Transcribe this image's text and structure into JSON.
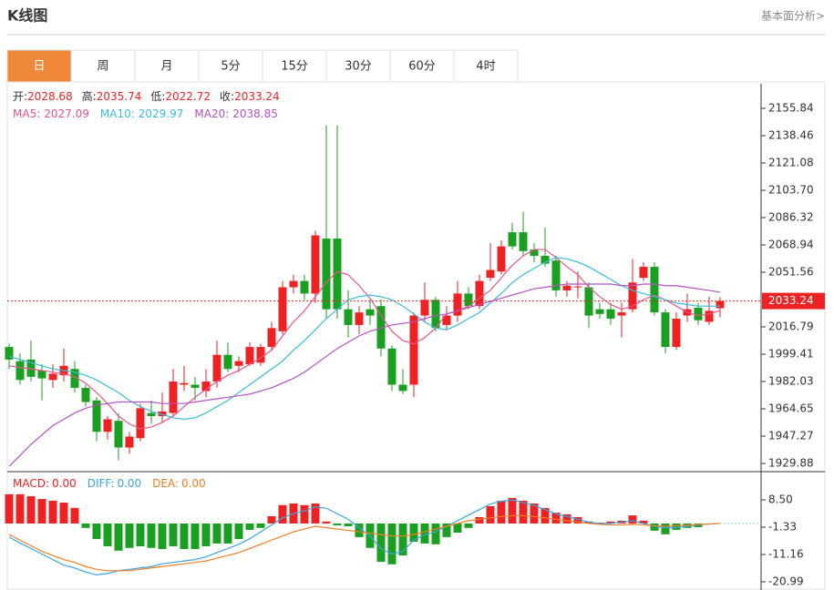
{
  "header": {
    "title": "K线图",
    "link": "基本面分析>"
  },
  "tabs": {
    "items": [
      "日",
      "周",
      "月",
      "5分",
      "15分",
      "30分",
      "60分",
      "4时"
    ],
    "active": 0,
    "active_color": "#f0883a"
  },
  "chart_data": [
    {
      "type": "candlestick",
      "quote_labels": [
        "开:",
        "高:",
        "低:",
        "收:"
      ],
      "up_color": "#ee2222",
      "down_color": "#1aa020",
      "open": [
        2004,
        1995,
        1996,
        1989,
        1983,
        1986,
        1990,
        1978,
        1970,
        1950,
        1957,
        1940,
        1946,
        1962,
        1960,
        1962,
        1980,
        1980,
        1976,
        1982,
        1999,
        1992,
        1993,
        1994,
        2004,
        2014,
        2042,
        2046,
        2038,
        2073,
        2073,
        2028,
        2018,
        2028,
        2030,
        2003,
        1980,
        1980,
        2024,
        2034,
        2018,
        2024,
        2038,
        2030,
        2048,
        2052,
        2077,
        2077,
        2066,
        2062,
        2059,
        2040,
        2042,
        2042,
        2028,
        2028,
        2024,
        2028,
        2048,
        2055,
        2026,
        2004,
        2024,
        2029,
        2020,
        2028.68
      ],
      "high": [
        2006,
        2000,
        2008,
        1993,
        1993,
        2003,
        1995,
        1980,
        1972,
        1960,
        1962,
        1950,
        1968,
        1970,
        1975,
        1990,
        1992,
        1985,
        1990,
        2008,
        2007,
        1998,
        2007,
        2006,
        2020,
        2046,
        2050,
        2050,
        2078,
        2145,
        2145,
        2040,
        2030,
        2034,
        2034,
        2005,
        1990,
        2026,
        2045,
        2036,
        2030,
        2046,
        2042,
        2050,
        2070,
        2072,
        2083,
        2090,
        2070,
        2080,
        2062,
        2046,
        2052,
        2045,
        2032,
        2032,
        2032,
        2060,
        2058,
        2058,
        2028,
        2026,
        2038,
        2032,
        2036,
        2035.74
      ],
      "low": [
        1990,
        1980,
        1982,
        1970,
        1978,
        1982,
        1975,
        1966,
        1944,
        1945,
        1932,
        1936,
        1944,
        1955,
        1956,
        1960,
        1976,
        1970,
        1972,
        1978,
        1988,
        1988,
        1992,
        1992,
        2002,
        2012,
        2038,
        2034,
        2032,
        2022,
        2022,
        2010,
        2012,
        2018,
        1998,
        1976,
        1974,
        1972,
        2020,
        2014,
        2015,
        2020,
        2028,
        2028,
        2046,
        2050,
        2066,
        2062,
        2058,
        2055,
        2036,
        2036,
        2035,
        2016,
        2022,
        2018,
        2010,
        2026,
        2046,
        2024,
        2000,
        2002,
        2020,
        2018,
        2018,
        2022.72
      ],
      "close": [
        1996,
        1983,
        1985,
        1984,
        1987,
        1992,
        1978,
        1969,
        1950,
        1958,
        1940,
        1947,
        1965,
        1960,
        1963,
        1982,
        1981,
        1978,
        1982,
        1999,
        1990,
        1995,
        2004,
        2004,
        2016,
        2042,
        2046,
        2038,
        2075,
        2028,
        2028,
        2018,
        2026,
        2024,
        2003,
        1980,
        1976,
        2024,
        2034,
        2016,
        2024,
        2038,
        2030,
        2046,
        2053,
        2068,
        2068,
        2065,
        2062,
        2057,
        2040,
        2043,
        2042.5,
        2024,
        2025,
        2022,
        2026,
        2045,
        2055,
        2026,
        2004,
        2022,
        2028,
        2021,
        2027,
        2033.24
      ],
      "series": [
        {
          "name": "MA5:",
          "color": "#e8558a",
          "values": [
            1992,
            1991,
            1990,
            1989,
            1988,
            1987,
            1985,
            1981,
            1975,
            1968,
            1960,
            1955,
            1952,
            1953,
            1956,
            1960,
            1966,
            1972,
            1977,
            1982,
            1986,
            1989,
            1993,
            1997,
            2002,
            2011,
            2020,
            2027,
            2036,
            2045,
            2052,
            2050,
            2043,
            2035,
            2024,
            2014,
            2008,
            2006,
            2010,
            2016,
            2025,
            2027,
            2030,
            2035,
            2040,
            2048,
            2056,
            2062,
            2066,
            2066,
            2061,
            2055,
            2050,
            2042,
            2036,
            2031,
            2028,
            2030,
            2034,
            2037,
            2034,
            2030,
            2026,
            2024,
            2025,
            2027.09
          ]
        },
        {
          "name": "MA10:",
          "color": "#3bbcd9",
          "values": [
            1998,
            1996,
            1994,
            1992,
            1990,
            1989,
            1988,
            1986,
            1983,
            1979,
            1975,
            1970,
            1966,
            1963,
            1961,
            1959,
            1958,
            1959,
            1962,
            1966,
            1970,
            1975,
            1980,
            1985,
            1990,
            1995,
            2002,
            2008,
            2015,
            2022,
            2028,
            2034,
            2036,
            2037,
            2036,
            2034,
            2030,
            2025,
            2020,
            2016,
            2015,
            2018,
            2022,
            2026,
            2032,
            2038,
            2045,
            2050,
            2054,
            2058,
            2061,
            2060,
            2058,
            2055,
            2051,
            2047,
            2043,
            2040,
            2038,
            2036,
            2034,
            2032,
            2031,
            2030,
            2030,
            2029.97
          ]
        },
        {
          "name": "MA20:",
          "color": "#b552c4",
          "values": [
            1928,
            1935,
            1942,
            1948,
            1954,
            1958,
            1962,
            1965,
            1967,
            1968,
            1969,
            1969,
            1969,
            1969,
            1968,
            1968,
            1968,
            1969,
            1970,
            1971,
            1972,
            1973,
            1974,
            1976,
            1978,
            1981,
            1984,
            1988,
            1993,
            1998,
            2003,
            2007,
            2011,
            2014,
            2016,
            2018,
            2019,
            2020,
            2022,
            2024,
            2025,
            2027,
            2029,
            2031,
            2033,
            2035,
            2037,
            2039,
            2041,
            2042,
            2043,
            2044,
            2044,
            2044,
            2044,
            2044,
            2043,
            2043,
            2044,
            2044,
            2043,
            2043,
            2042,
            2041,
            2040,
            2038.85
          ]
        }
      ],
      "ylim": [
        1924.67,
        2171.48
      ],
      "yticks": [
        2155.84,
        2138.46,
        {
          "value": 2121.08,
          "label": "2121.08"
        },
        {
          "value": 2103.7,
          "label": "2103.70"
        },
        2086.32,
        2068.94,
        2051.56,
        2016.79,
        1999.41,
        1982.03,
        1964.65,
        1947.27,
        1929.88
      ],
      "grid": false
    },
    {
      "type": "macd",
      "series": [
        {
          "name": "MACD:",
          "color": "#ee2222",
          "legend_value": {
            "value": 0,
            "label": "0.00"
          },
          "up_color": "#ee2222",
          "down_color": "#1aa020",
          "values": [
            10.5,
            10.5,
            9.8,
            8.8,
            8.2,
            7.5,
            5.6,
            -1.6,
            -5.6,
            -8.2,
            -9.8,
            -8.8,
            -8.2,
            -8.8,
            -9.2,
            -8.2,
            -9.2,
            -9.2,
            -8.2,
            -7.2,
            -7.2,
            -5.6,
            -2.3,
            -1.6,
            2.6,
            6.6,
            7.2,
            6.6,
            7.2,
            0.7,
            -0.7,
            -1,
            -4.9,
            -8.8,
            -13.8,
            -14.7,
            -11.5,
            -6.6,
            -7.2,
            -7.5,
            -4.9,
            -3.3,
            -1.6,
            2.3,
            6.2,
            8.2,
            9.2,
            8.2,
            7.2,
            5.6,
            3.9,
            3.3,
            2.3,
            0.7,
            0.3,
            0.7,
            1.0,
            2.9,
            1.0,
            -2.6,
            -3.9,
            -2.3,
            -1.6,
            -1.3,
            -0.3,
            0
          ]
        },
        {
          "name": "DIFF:",
          "color": "#3ba4e0",
          "legend_value": {
            "value": 0,
            "label": "0.00"
          },
          "values": [
            -4.9,
            -7,
            -9,
            -11,
            -13,
            -15,
            -16,
            -17.5,
            -18.5,
            -18,
            -17,
            -16.5,
            -16,
            -15.5,
            -14.5,
            -14,
            -13.5,
            -13,
            -12,
            -10.5,
            -9,
            -7.5,
            -5.5,
            -3,
            -0.5,
            2,
            3.5,
            4.5,
            6,
            5.5,
            3.5,
            1.5,
            -1.5,
            -4.5,
            -9,
            -11,
            -10,
            -6,
            -4,
            -3,
            -1,
            1,
            3,
            5,
            7,
            8,
            8.5,
            7.5,
            6.5,
            5,
            3.5,
            2.5,
            1.5,
            0.5,
            0,
            0,
            0.5,
            1,
            0,
            -1,
            -1.5,
            -1.5,
            -1,
            -0.5,
            -0.2,
            0
          ]
        },
        {
          "name": "DEA:",
          "color": "#f07e22",
          "legend_value": {
            "value": 0,
            "label": "0.00"
          },
          "values": [
            -4,
            -6,
            -8,
            -10,
            -11.5,
            -13,
            -14,
            -15.5,
            -16.5,
            -17,
            -17,
            -17,
            -16.5,
            -16,
            -15.5,
            -15,
            -14.5,
            -14,
            -13.5,
            -12.5,
            -11.5,
            -10.5,
            -9,
            -7.5,
            -6,
            -4.5,
            -3,
            -2,
            -1,
            -1.5,
            -2,
            -2.5,
            -3,
            -3.5,
            -4,
            -4.5,
            -4.5,
            -4,
            -3,
            -2,
            -1,
            0,
            1,
            1.5,
            2,
            2.5,
            2.8,
            2.8,
            2.5,
            2,
            1.5,
            1,
            0.5,
            0,
            -0.3,
            -0.5,
            -0.5,
            -0.3,
            -0.5,
            -0.8,
            -1,
            -0.8,
            -0.6,
            -0.4,
            -0.2,
            0
          ]
        }
      ],
      "ylim": [
        -23.94,
        18.0
      ],
      "yticks": [
        {
          "value": 8.5,
          "label": "8.50"
        },
        -1.33,
        -11.16,
        -20.99
      ],
      "grid": false
    }
  ]
}
